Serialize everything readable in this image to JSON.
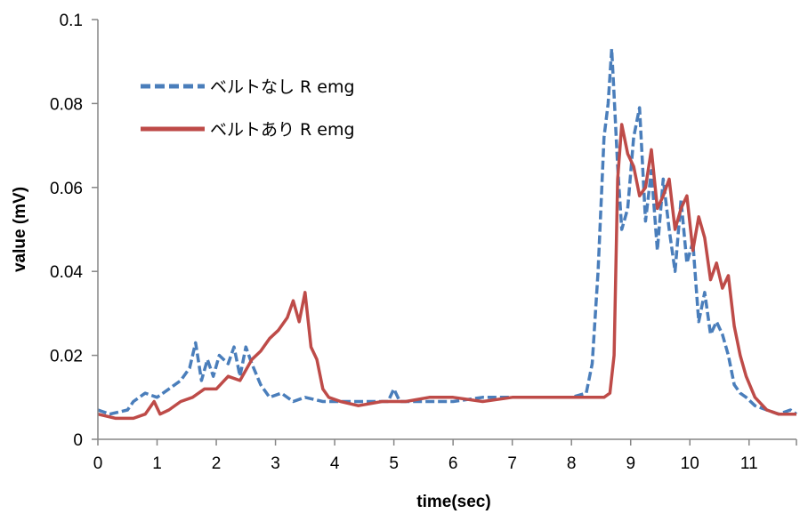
{
  "chart_data": {
    "type": "line",
    "title": "",
    "xlabel": "time(sec)",
    "ylabel": "value (mV)",
    "xlim": [
      0,
      11.8
    ],
    "ylim": [
      0,
      0.1
    ],
    "xticks": [
      "0",
      "1",
      "2",
      "3",
      "4",
      "5",
      "6",
      "7",
      "8",
      "9",
      "10",
      "11"
    ],
    "yticks": [
      "0",
      "0.02",
      "0.04",
      "0.06",
      "0.08",
      "0.1"
    ],
    "grid": false,
    "legend_position": "top-left",
    "series": [
      {
        "name": "ベルトなし R emg",
        "color": "#4a7ebb",
        "dash": "dashed",
        "x": [
          0,
          0.2,
          0.5,
          0.6,
          0.8,
          1.0,
          1.2,
          1.4,
          1.55,
          1.65,
          1.75,
          1.85,
          1.95,
          2.05,
          2.2,
          2.3,
          2.4,
          2.5,
          2.6,
          2.75,
          2.9,
          3.1,
          3.3,
          3.5,
          3.8,
          4.1,
          4.5,
          4.9,
          5.0,
          5.1,
          5.5,
          6.0,
          6.5,
          7.0,
          7.5,
          8.0,
          8.25,
          8.35,
          8.45,
          8.55,
          8.62,
          8.68,
          8.72,
          8.78,
          8.85,
          8.95,
          9.05,
          9.15,
          9.25,
          9.35,
          9.45,
          9.55,
          9.65,
          9.75,
          9.85,
          9.95,
          10.05,
          10.15,
          10.25,
          10.35,
          10.45,
          10.55,
          10.65,
          10.75,
          10.85,
          10.95,
          11.1,
          11.3,
          11.5,
          11.7,
          11.8
        ],
        "values": [
          0.007,
          0.006,
          0.007,
          0.009,
          0.011,
          0.01,
          0.012,
          0.014,
          0.017,
          0.023,
          0.014,
          0.019,
          0.015,
          0.02,
          0.018,
          0.022,
          0.015,
          0.022,
          0.018,
          0.013,
          0.01,
          0.011,
          0.009,
          0.01,
          0.009,
          0.009,
          0.009,
          0.009,
          0.012,
          0.009,
          0.009,
          0.009,
          0.01,
          0.01,
          0.01,
          0.01,
          0.011,
          0.018,
          0.04,
          0.072,
          0.08,
          0.093,
          0.082,
          0.065,
          0.05,
          0.055,
          0.072,
          0.079,
          0.052,
          0.064,
          0.045,
          0.062,
          0.05,
          0.04,
          0.057,
          0.042,
          0.047,
          0.028,
          0.035,
          0.025,
          0.028,
          0.025,
          0.02,
          0.013,
          0.011,
          0.01,
          0.008,
          0.007,
          0.006,
          0.007,
          0.006
        ]
      },
      {
        "name": "ベルトあり R emg",
        "color": "#be4b48",
        "dash": "solid",
        "x": [
          0,
          0.3,
          0.6,
          0.8,
          0.95,
          1.05,
          1.2,
          1.4,
          1.6,
          1.8,
          2.0,
          2.2,
          2.4,
          2.6,
          2.75,
          2.9,
          3.05,
          3.2,
          3.3,
          3.4,
          3.5,
          3.6,
          3.7,
          3.8,
          3.9,
          4.1,
          4.4,
          4.8,
          5.2,
          5.6,
          6.0,
          6.5,
          7.0,
          7.5,
          8.0,
          8.3,
          8.55,
          8.65,
          8.72,
          8.78,
          8.85,
          8.95,
          9.05,
          9.15,
          9.25,
          9.35,
          9.45,
          9.55,
          9.65,
          9.75,
          9.85,
          9.95,
          10.05,
          10.15,
          10.25,
          10.35,
          10.45,
          10.55,
          10.65,
          10.75,
          10.85,
          10.95,
          11.1,
          11.3,
          11.5,
          11.8
        ],
        "values": [
          0.006,
          0.005,
          0.005,
          0.006,
          0.009,
          0.006,
          0.007,
          0.009,
          0.01,
          0.012,
          0.012,
          0.015,
          0.014,
          0.019,
          0.021,
          0.024,
          0.026,
          0.029,
          0.033,
          0.028,
          0.035,
          0.022,
          0.019,
          0.012,
          0.01,
          0.009,
          0.008,
          0.009,
          0.009,
          0.01,
          0.01,
          0.009,
          0.01,
          0.01,
          0.01,
          0.01,
          0.01,
          0.011,
          0.02,
          0.062,
          0.075,
          0.068,
          0.065,
          0.058,
          0.06,
          0.069,
          0.055,
          0.058,
          0.062,
          0.05,
          0.055,
          0.058,
          0.045,
          0.053,
          0.048,
          0.038,
          0.042,
          0.036,
          0.039,
          0.027,
          0.02,
          0.015,
          0.01,
          0.007,
          0.006,
          0.006
        ]
      }
    ]
  }
}
